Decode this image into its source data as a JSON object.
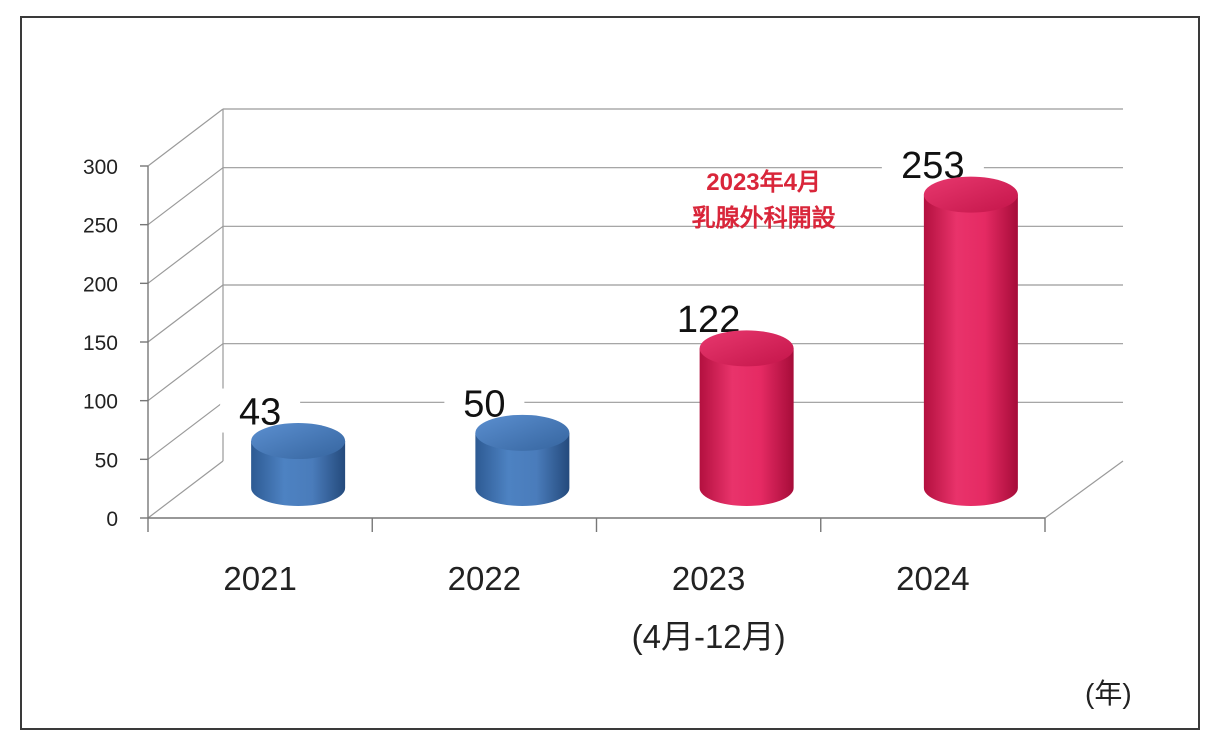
{
  "chart_data": {
    "type": "bar",
    "categories": [
      "2021",
      "2022",
      "2023",
      "2024"
    ],
    "category_sublabels": [
      "",
      "",
      "(4月-12月)",
      ""
    ],
    "values": [
      43,
      50,
      122,
      253
    ],
    "ylim": [
      0,
      300
    ],
    "yticks": [
      "0",
      "50",
      "100",
      "150",
      "200",
      "250",
      "300"
    ],
    "x_unit": "(年)",
    "annotation": [
      "2023年4月",
      "乳腺外科開設"
    ],
    "grid": true,
    "colors": [
      "#3f74b5",
      "#3f74b5",
      "#e0205a",
      "#e0205a"
    ]
  }
}
